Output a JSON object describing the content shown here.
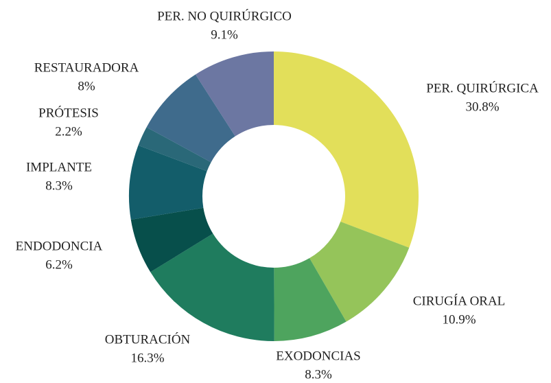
{
  "chart_data": {
    "type": "donut",
    "categories": [
      "PER. QUIRÚRGICA",
      "CIRUGÍA ORAL",
      "EXODONCIAS",
      "OBTURACIÓN",
      "ENDODONCIA",
      "IMPLANTE",
      "PRÓTESIS",
      "RESTAURADORA",
      "PER. NO QUIRÚRGICO"
    ],
    "values": [
      30.8,
      10.9,
      8.3,
      16.3,
      6.2,
      8.3,
      2.2,
      8,
      9.1
    ],
    "value_labels": [
      "30.8%",
      "10.9%",
      "8.3%",
      "16.3%",
      "6.2%",
      "8.3%",
      "2.2%",
      "8%",
      "9.1%"
    ],
    "colors": [
      "#e2df5a",
      "#95c45a",
      "#4ea45e",
      "#1f7c5e",
      "#074f4b",
      "#135d6a",
      "#2a6878",
      "#3f6b8c",
      "#6c77a2"
    ]
  }
}
